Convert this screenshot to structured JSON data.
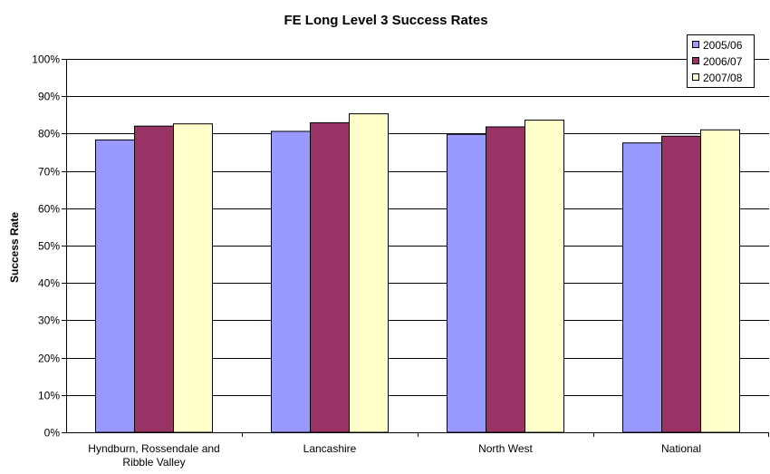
{
  "chart_data": {
    "type": "bar",
    "title": "FE Long Level 3 Success Rates",
    "xlabel": "",
    "ylabel": "Success Rate",
    "ylim": [
      0,
      100
    ],
    "yticks": [
      "0%",
      "10%",
      "20%",
      "30%",
      "40%",
      "50%",
      "60%",
      "70%",
      "80%",
      "90%",
      "100%"
    ],
    "categories": [
      [
        "Hyndburn, Rossendale and",
        "Ribble Valley"
      ],
      [
        "Lancashire"
      ],
      [
        "North West"
      ],
      [
        "National"
      ]
    ],
    "series": [
      {
        "name": "2005/06",
        "color": "#9999ff",
        "values": [
          78.3,
          80.6,
          79.8,
          77.5
        ]
      },
      {
        "name": "2006/07",
        "color": "#993366",
        "values": [
          82.0,
          82.9,
          81.8,
          79.3
        ]
      },
      {
        "name": "2007/08",
        "color": "#ffffcc",
        "values": [
          82.6,
          85.3,
          83.6,
          81.0
        ]
      }
    ],
    "grid": true,
    "legend_position": "top-right"
  }
}
